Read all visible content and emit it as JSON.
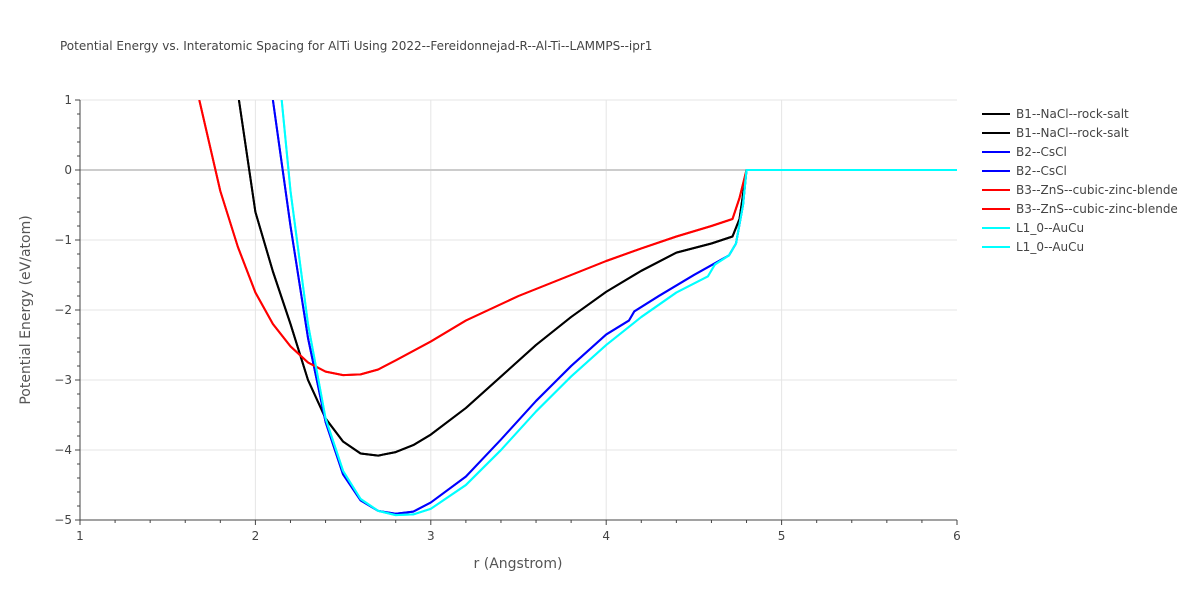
{
  "chart_data": {
    "type": "line",
    "title": "Potential Energy vs. Interatomic Spacing for AlTi Using 2022--Fereidonnejad-R--Al-Ti--LAMMPS--ipr1",
    "xlabel": "r (Angstrom)",
    "ylabel": "Potential Energy (eV/atom)",
    "xlim": [
      1,
      6
    ],
    "ylim": [
      -5,
      1
    ],
    "x_ticks": [
      "1",
      "2",
      "3",
      "4",
      "5",
      "6"
    ],
    "y_ticks": [
      "1",
      "0",
      "−1",
      "−2",
      "−3",
      "−4",
      "−5"
    ],
    "grid": true,
    "legend_position": "top-right",
    "series": [
      {
        "name": "B1--NaCl--rock-salt",
        "color": "#000000",
        "x": [
          1.9,
          2.0,
          2.1,
          2.2,
          2.3,
          2.4,
          2.5,
          2.6,
          2.7,
          2.8,
          2.9,
          3.0,
          3.2,
          3.4,
          3.6,
          3.8,
          4.0,
          4.2,
          4.4,
          4.6,
          4.72,
          4.76,
          4.78,
          4.8,
          5.0,
          6.0
        ],
        "y": [
          1.1,
          -0.6,
          -1.45,
          -2.2,
          -3.0,
          -3.55,
          -3.88,
          -4.05,
          -4.08,
          -4.03,
          -3.93,
          -3.78,
          -3.4,
          -2.95,
          -2.5,
          -2.1,
          -1.74,
          -1.44,
          -1.18,
          -1.05,
          -0.95,
          -0.7,
          -0.35,
          0,
          0,
          0
        ]
      },
      {
        "name": "B1--NaCl--rock-salt",
        "color": "#000000",
        "x": [
          1.9,
          2.0,
          2.1,
          2.2,
          2.3,
          2.4,
          2.5,
          2.6,
          2.7,
          2.8,
          2.9,
          3.0,
          3.2,
          3.4,
          3.6,
          3.8,
          4.0,
          4.2,
          4.4,
          4.6,
          4.72,
          4.76,
          4.78,
          4.8,
          5.0,
          6.0
        ],
        "y": [
          1.1,
          -0.6,
          -1.45,
          -2.2,
          -3.0,
          -3.55,
          -3.88,
          -4.05,
          -4.08,
          -4.03,
          -3.93,
          -3.78,
          -3.4,
          -2.95,
          -2.5,
          -2.1,
          -1.74,
          -1.44,
          -1.18,
          -1.05,
          -0.95,
          -0.7,
          -0.35,
          0,
          0,
          0
        ]
      },
      {
        "name": "B2--CsCl",
        "color": "#0000ff",
        "x": [
          2.1,
          2.2,
          2.3,
          2.4,
          2.5,
          2.6,
          2.7,
          2.8,
          2.9,
          3.0,
          3.2,
          3.4,
          3.6,
          3.8,
          4.0,
          4.13,
          4.16,
          4.3,
          4.5,
          4.7,
          4.74,
          4.78,
          4.8,
          5.0,
          6.0
        ],
        "y": [
          1.0,
          -0.8,
          -2.4,
          -3.6,
          -4.35,
          -4.72,
          -4.87,
          -4.91,
          -4.88,
          -4.75,
          -4.38,
          -3.85,
          -3.3,
          -2.8,
          -2.35,
          -2.15,
          -2.02,
          -1.8,
          -1.5,
          -1.22,
          -1.05,
          -0.5,
          0,
          0,
          0
        ]
      },
      {
        "name": "B2--CsCl",
        "color": "#0000ff",
        "x": [
          2.1,
          2.2,
          2.3,
          2.4,
          2.5,
          2.6,
          2.7,
          2.8,
          2.9,
          3.0,
          3.2,
          3.4,
          3.6,
          3.8,
          4.0,
          4.13,
          4.16,
          4.3,
          4.5,
          4.7,
          4.74,
          4.78,
          4.8,
          5.0,
          6.0
        ],
        "y": [
          1.0,
          -0.8,
          -2.4,
          -3.6,
          -4.35,
          -4.72,
          -4.87,
          -4.91,
          -4.88,
          -4.75,
          -4.38,
          -3.85,
          -3.3,
          -2.8,
          -2.35,
          -2.15,
          -2.02,
          -1.8,
          -1.5,
          -1.22,
          -1.05,
          -0.5,
          0,
          0,
          0
        ]
      },
      {
        "name": "B3--ZnS--cubic-zinc-blende",
        "color": "#ff0000",
        "x": [
          1.68,
          1.8,
          1.9,
          2.0,
          2.1,
          2.2,
          2.3,
          2.4,
          2.5,
          2.6,
          2.7,
          2.8,
          3.0,
          3.2,
          3.5,
          3.8,
          4.0,
          4.2,
          4.4,
          4.6,
          4.72,
          4.76,
          4.8,
          5.0,
          6.0
        ],
        "y": [
          1.0,
          -0.3,
          -1.1,
          -1.75,
          -2.2,
          -2.52,
          -2.75,
          -2.88,
          -2.93,
          -2.92,
          -2.85,
          -2.72,
          -2.45,
          -2.15,
          -1.8,
          -1.5,
          -1.3,
          -1.12,
          -0.95,
          -0.8,
          -0.7,
          -0.4,
          0,
          0,
          0
        ]
      },
      {
        "name": "B3--ZnS--cubic-zinc-blende",
        "color": "#ff0000",
        "x": [
          1.68,
          1.8,
          1.9,
          2.0,
          2.1,
          2.2,
          2.3,
          2.4,
          2.5,
          2.6,
          2.7,
          2.8,
          3.0,
          3.2,
          3.5,
          3.8,
          4.0,
          4.2,
          4.4,
          4.6,
          4.72,
          4.76,
          4.8,
          5.0,
          6.0
        ],
        "y": [
          1.0,
          -0.3,
          -1.1,
          -1.75,
          -2.2,
          -2.52,
          -2.75,
          -2.88,
          -2.93,
          -2.92,
          -2.85,
          -2.72,
          -2.45,
          -2.15,
          -1.8,
          -1.5,
          -1.3,
          -1.12,
          -0.95,
          -0.8,
          -0.7,
          -0.4,
          0,
          0,
          0
        ]
      },
      {
        "name": "L1_0--AuCu",
        "color": "#00ffff",
        "x": [
          2.15,
          2.2,
          2.3,
          2.4,
          2.5,
          2.6,
          2.7,
          2.8,
          2.9,
          3.0,
          3.2,
          3.4,
          3.6,
          3.8,
          4.0,
          4.2,
          4.4,
          4.58,
          4.62,
          4.7,
          4.74,
          4.78,
          4.8,
          5.0,
          6.0
        ],
        "y": [
          1.0,
          -0.3,
          -2.2,
          -3.55,
          -4.3,
          -4.7,
          -4.87,
          -4.93,
          -4.92,
          -4.84,
          -4.5,
          -4.0,
          -3.45,
          -2.95,
          -2.5,
          -2.1,
          -1.75,
          -1.52,
          -1.35,
          -1.22,
          -1.05,
          -0.5,
          0,
          0,
          0
        ]
      },
      {
        "name": "L1_0--AuCu",
        "color": "#00ffff",
        "x": [
          2.15,
          2.2,
          2.3,
          2.4,
          2.5,
          2.6,
          2.7,
          2.8,
          2.9,
          3.0,
          3.2,
          3.4,
          3.6,
          3.8,
          4.0,
          4.2,
          4.4,
          4.58,
          4.62,
          4.7,
          4.74,
          4.78,
          4.8,
          5.0,
          6.0
        ],
        "y": [
          1.0,
          -0.3,
          -2.2,
          -3.55,
          -4.3,
          -4.7,
          -4.87,
          -4.93,
          -4.92,
          -4.84,
          -4.5,
          -4.0,
          -3.45,
          -2.95,
          -2.5,
          -2.1,
          -1.75,
          -1.52,
          -1.35,
          -1.22,
          -1.05,
          -0.5,
          0,
          0,
          0
        ]
      }
    ]
  }
}
